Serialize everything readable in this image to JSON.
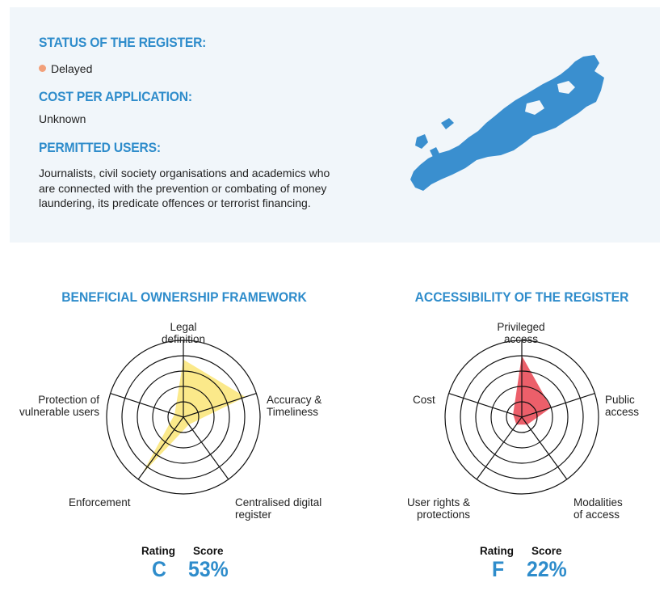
{
  "info": {
    "status_heading": "STATUS OF THE REGISTER:",
    "status_value": "Delayed",
    "status_color": "#f2a07a",
    "cost_heading": "COST PER APPLICATION:",
    "cost_value": "Unknown",
    "users_heading": "PERMITTED USERS:",
    "users_lines": [
      "Journalists, civil society organisations and academics who",
      "are connected with the prevention or combating of money",
      "laundering, its predicate offences or terrorist financing."
    ],
    "map_icon": "bermuda-map-icon",
    "map_color": "#3a8fcf"
  },
  "chart_data": [
    {
      "type": "radar",
      "title": "BENEFICIAL OWNERSHIP FRAMEWORK",
      "axes": [
        "Legal definition",
        "Accuracy & Timeliness",
        "Centralised digital register",
        "Enforcement",
        "Protection of vulnerable users"
      ],
      "values": [
        0.75,
        0.85,
        0.12,
        0.92,
        0.12
      ],
      "rings": 5,
      "fill_color": "#fbe98a",
      "rating_label": "Rating",
      "score_label": "Score",
      "rating": "C",
      "score": "53%"
    },
    {
      "type": "radar",
      "title": "ACCESSIBILITY OF THE REGISTER",
      "axes": [
        "Privileged access",
        "Public access",
        "Modalities of access",
        "User rights & protections",
        "Cost"
      ],
      "values": [
        0.8,
        0.4,
        0.12,
        0.12,
        0.12
      ],
      "rings": 5,
      "fill_color": "#ec5f6a",
      "rating_label": "Rating",
      "score_label": "Score",
      "rating": "F",
      "score": "22%"
    }
  ]
}
